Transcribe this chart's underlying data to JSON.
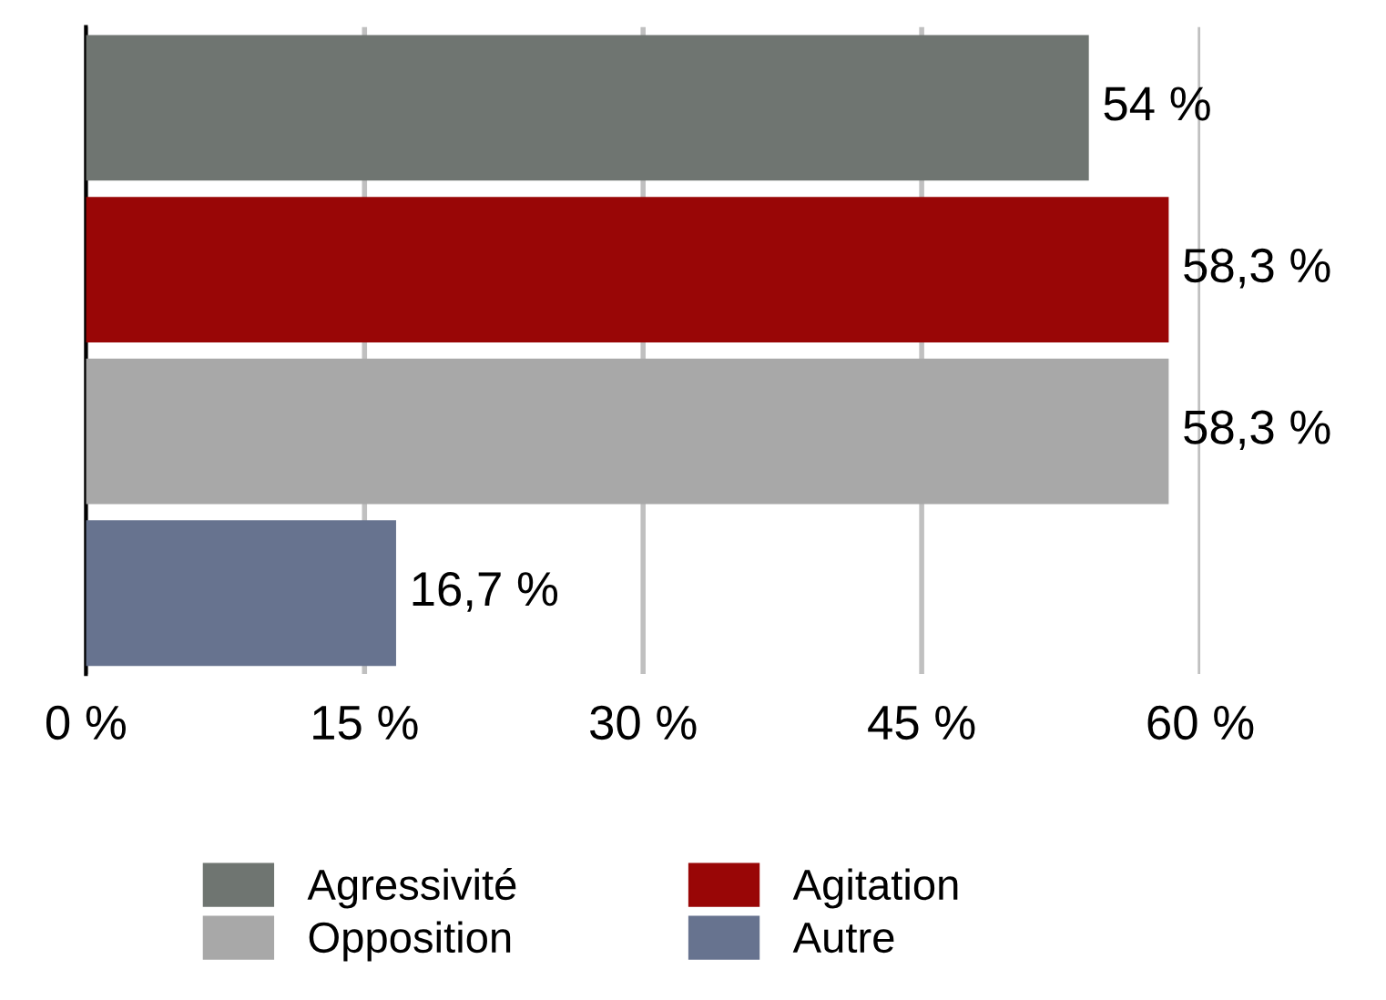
{
  "chart_data": {
    "type": "bar",
    "orientation": "horizontal",
    "categories": [
      null,
      null,
      null,
      null
    ],
    "series": [
      {
        "name": "Agressivité",
        "color": "#6f7571",
        "values": [
          54,
          null,
          null,
          null
        ],
        "value_labels": [
          "54 %",
          null,
          null,
          null
        ]
      },
      {
        "name": "Agitation",
        "color": "#990606",
        "values": [
          null,
          58.3,
          null,
          null
        ],
        "value_labels": [
          null,
          "58,3 %",
          null,
          null
        ]
      },
      {
        "name": "Opposition",
        "color": "#a8a8a8",
        "values": [
          null,
          null,
          58.3,
          null
        ],
        "value_labels": [
          null,
          null,
          "58,3 %",
          null
        ]
      },
      {
        "name": "Autre",
        "color": "#67738f",
        "values": [
          null,
          null,
          null,
          16.7
        ],
        "value_labels": [
          null,
          null,
          null,
          "16,7 %"
        ]
      }
    ],
    "xlim": [
      0,
      60
    ],
    "xticks": [
      {
        "value": 0,
        "label": "0 %"
      },
      {
        "value": 15,
        "label": "15 %"
      },
      {
        "value": 30,
        "label": "30 %"
      },
      {
        "value": 45,
        "label": "45 %"
      },
      {
        "value": 60,
        "label": "60 %"
      }
    ],
    "grid": "x",
    "legend": "bottom",
    "tick_labels": "x"
  }
}
